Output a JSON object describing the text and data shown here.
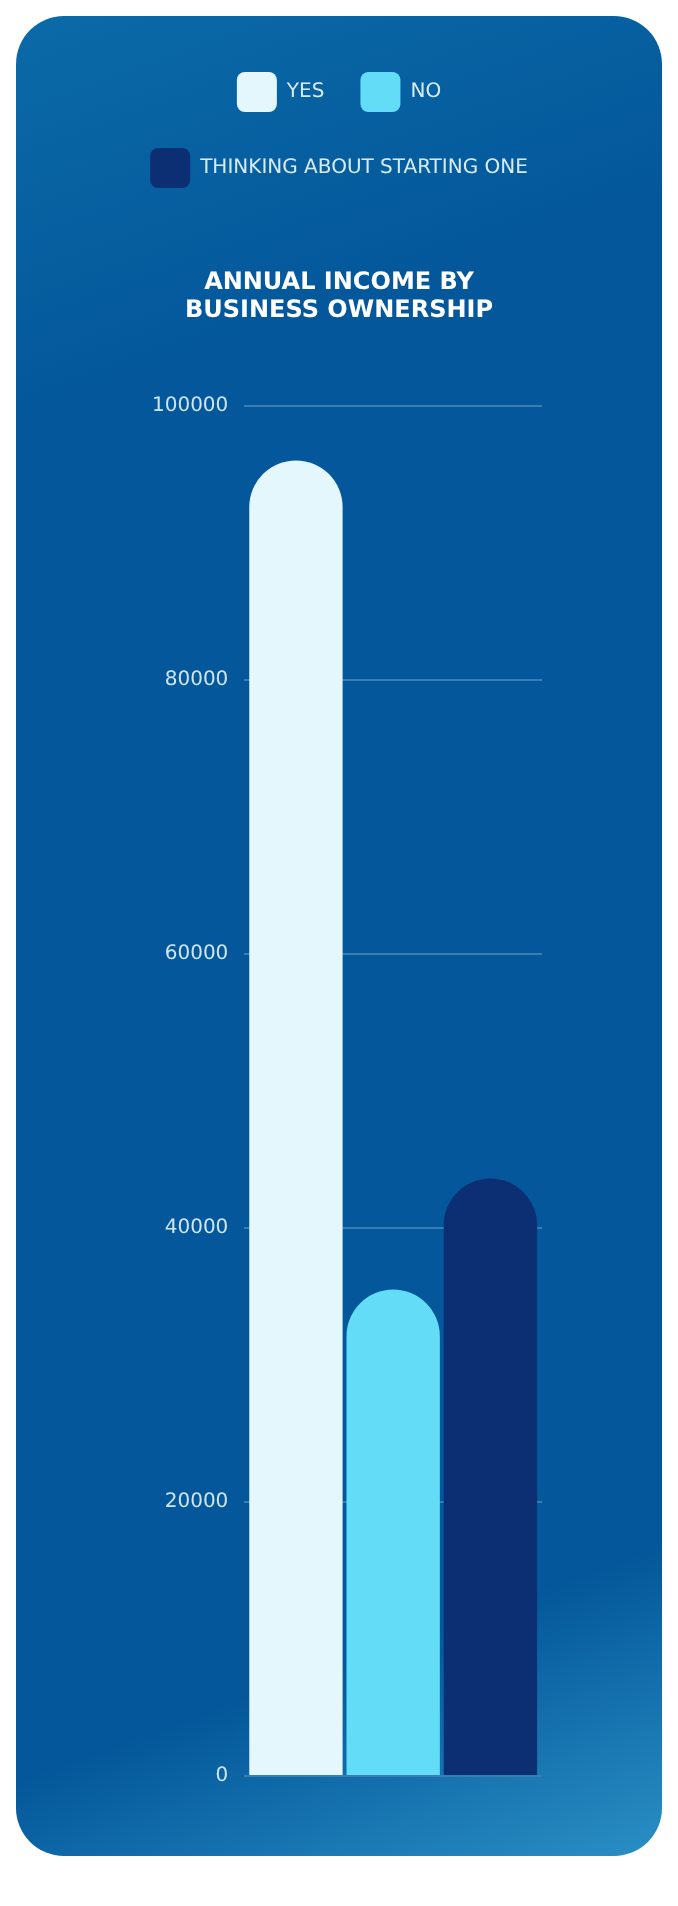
{
  "chart_data": {
    "type": "bar",
    "title": "ANNUAL INCOME BY BUSINESS OWNERSHIP",
    "categories": [
      null
    ],
    "series": [
      {
        "name": "YES",
        "color": "#e3f7fd",
        "values": [
          96000
        ]
      },
      {
        "name": "NO",
        "color": "#62dcf7",
        "values": [
          35500
        ]
      },
      {
        "name": "THINKING ABOUT STARTING ONE",
        "color": "#0c2f74",
        "values": [
          43600
        ]
      }
    ],
    "ylim": [
      0,
      100000
    ],
    "yticks": [
      0,
      20000,
      40000,
      60000,
      80000,
      100000
    ],
    "grid": "y",
    "legend": "top"
  }
}
